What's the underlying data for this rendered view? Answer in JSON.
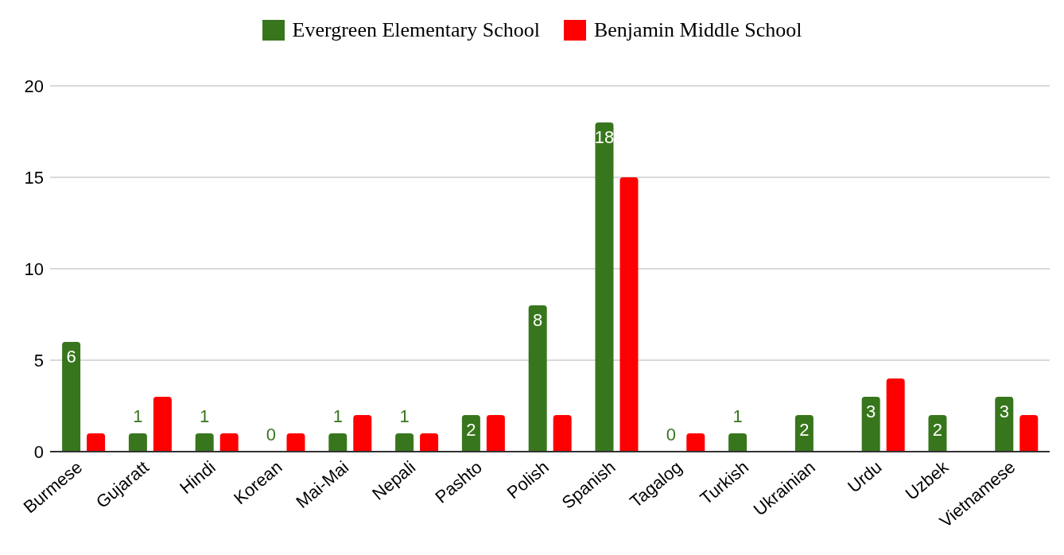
{
  "chart_data": {
    "type": "bar",
    "categories": [
      "Burmese",
      "Gujaratt",
      "Hindi",
      "Korean",
      "Mai-Mai",
      "Nepali",
      "Pashto",
      "Polish",
      "Spanish",
      "Tagalog",
      "Turkish",
      "Ukrainian",
      "Urdu",
      "Uzbek",
      "Vietnamese"
    ],
    "series": [
      {
        "name": "Evergreen Elementary School",
        "color": "#38761d",
        "values": [
          6,
          1,
          1,
          0,
          1,
          1,
          2,
          8,
          18,
          0,
          1,
          2,
          3,
          2,
          3
        ],
        "value_labels": [
          "6",
          "1",
          "1",
          "0",
          "1",
          "1",
          "2",
          "8",
          "18",
          "0",
          "1",
          "2",
          "3",
          "2",
          "3"
        ]
      },
      {
        "name": "Benjamin Middle School",
        "color": "#ff0000",
        "values": [
          1,
          3,
          1,
          1,
          2,
          1,
          2,
          2,
          15,
          1,
          0,
          0,
          4,
          0,
          2
        ]
      }
    ],
    "ylim": [
      0,
      20
    ],
    "yticks": [
      0,
      5,
      10,
      15,
      20
    ],
    "grid": "y",
    "legend": "top"
  }
}
